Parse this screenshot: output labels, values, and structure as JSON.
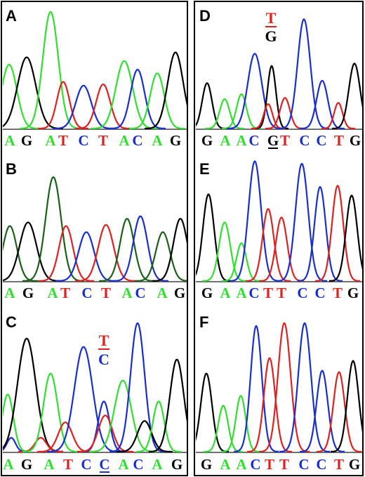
{
  "colors": {
    "A": "#33dd33",
    "A_dark": "#1a5f1a",
    "G": "#000000",
    "C": "#1a2ed0",
    "T": "#dd2222"
  },
  "panels": [
    {
      "letter": "A",
      "bases": [
        "A",
        "G",
        "A",
        "T",
        "C",
        "T",
        "A",
        "C",
        "A",
        "G"
      ],
      "base_colors": [
        "A",
        "G",
        "A",
        "T",
        "C",
        "T",
        "A",
        "C",
        "A",
        "G"
      ],
      "underline": []
    },
    {
      "letter": "B",
      "bases": [
        "A",
        "G",
        "A",
        "T",
        "C",
        "T",
        "A",
        "C",
        "A",
        "G"
      ],
      "base_colors": [
        "A",
        "G",
        "A",
        "T",
        "C",
        "T",
        "A",
        "C",
        "A",
        "G"
      ],
      "underline": []
    },
    {
      "letter": "C",
      "bases": [
        "A",
        "G",
        "A",
        "T",
        "C",
        "C",
        "A",
        "C",
        "A",
        "G"
      ],
      "base_colors": [
        "A",
        "G",
        "A",
        "T",
        "C",
        "C",
        "A",
        "C",
        "A",
        "G"
      ],
      "underline": [
        5
      ],
      "note": {
        "top": "T",
        "bottom": "C",
        "top_color": "T",
        "bottom_color": "C"
      }
    },
    {
      "letter": "D",
      "bases": [
        "G",
        "A",
        "A",
        "C",
        "G",
        "T",
        "C",
        "C",
        "T",
        "G"
      ],
      "base_colors": [
        "G",
        "A",
        "A",
        "C",
        "G",
        "T",
        "C",
        "C",
        "T",
        "G"
      ],
      "underline": [
        4
      ],
      "note": {
        "top": "T",
        "bottom": "G",
        "top_color": "T",
        "bottom_color": "G"
      }
    },
    {
      "letter": "E",
      "bases": [
        "G",
        "A",
        "A",
        "C",
        "T",
        "T",
        "C",
        "C",
        "T",
        "G"
      ],
      "base_colors": [
        "G",
        "A",
        "A",
        "C",
        "T",
        "T",
        "C",
        "C",
        "T",
        "G"
      ],
      "underline": []
    },
    {
      "letter": "F",
      "bases": [
        "G",
        "A",
        "A",
        "C",
        "T",
        "T",
        "C",
        "C",
        "T",
        "G"
      ],
      "base_colors": [
        "G",
        "A",
        "A",
        "C",
        "T",
        "T",
        "C",
        "C",
        "T",
        "G"
      ],
      "underline": []
    }
  ]
}
